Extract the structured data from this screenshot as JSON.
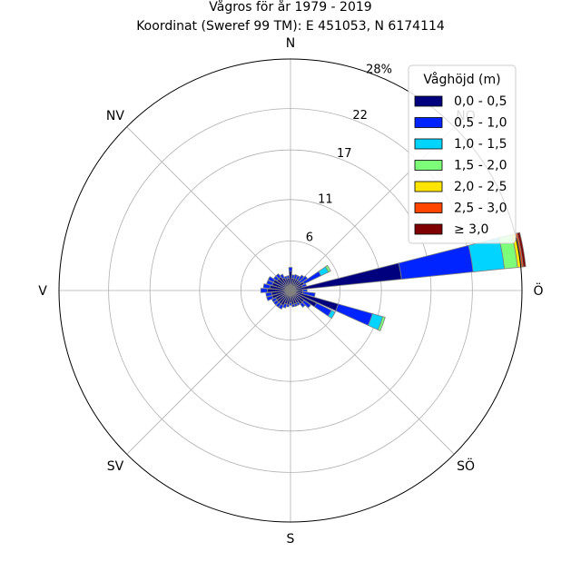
{
  "chart_data": {
    "type": "windrose",
    "title_line1": "Vågros för år 1979 - 2019",
    "title_line2": "Koordinat (Sweref 99 TM): E 451053, N 6174114",
    "radial_ticks": [
      "6",
      "11",
      "17",
      "22",
      "28%"
    ],
    "radial_tick_values": [
      6,
      11,
      17,
      22,
      28
    ],
    "r_max": 28,
    "direction_labels": [
      {
        "label": "N",
        "angle": 0
      },
      {
        "label": "NO",
        "angle": 45
      },
      {
        "label": "Ö",
        "angle": 90
      },
      {
        "label": "SÖ",
        "angle": 135
      },
      {
        "label": "S",
        "angle": 180
      },
      {
        "label": "SV",
        "angle": 225
      },
      {
        "label": "V",
        "angle": 270
      },
      {
        "label": "NV",
        "angle": 315
      }
    ],
    "legend_title": "Våghöjd (m)",
    "bins": [
      {
        "label": "0,0 - 0,5",
        "color": "#00007f"
      },
      {
        "label": "0,5 - 1,0",
        "color": "#0024ff"
      },
      {
        "label": "1,0 - 1,5",
        "color": "#00d4ff"
      },
      {
        "label": "1,5 - 2,0",
        "color": "#7dff7a"
      },
      {
        "label": "2,0 - 2,5",
        "color": "#ffe500"
      },
      {
        "label": "2,5 - 3,0",
        "color": "#ff4500"
      },
      {
        "label": "≥ 3,0",
        "color": "#7f0000"
      }
    ],
    "sector_directions": [
      0,
      10,
      20,
      30,
      40,
      50,
      60,
      70,
      80,
      90,
      100,
      110,
      120,
      130,
      140,
      150,
      160,
      170,
      180,
      190,
      200,
      210,
      220,
      230,
      240,
      250,
      260,
      270,
      280,
      290,
      300,
      310,
      320,
      330,
      340,
      350
    ],
    "sector_values": [
      [
        2.3,
        0.5,
        0,
        0,
        0,
        0,
        0
      ],
      [
        1.5,
        0.4,
        0,
        0,
        0,
        0,
        0
      ],
      [
        1.5,
        0.5,
        0,
        0,
        0,
        0,
        0
      ],
      [
        1.5,
        0.5,
        0,
        0,
        0,
        0,
        0
      ],
      [
        1.5,
        0.8,
        0,
        0,
        0,
        0,
        0
      ],
      [
        1.5,
        1.0,
        0,
        0,
        0,
        0,
        0
      ],
      [
        1.8,
        2.3,
        1.0,
        0.3,
        0,
        0,
        0
      ],
      [
        1.5,
        0.5,
        0,
        0,
        0,
        0,
        0
      ],
      [
        13.5,
        8.7,
        3.8,
        1.6,
        0.5,
        0.2,
        0.3
      ],
      [
        1.5,
        0.5,
        0,
        0,
        0,
        0,
        0
      ],
      [
        1.5,
        1.5,
        0,
        0,
        0,
        0,
        0
      ],
      [
        6.0,
        4.3,
        1.3,
        0.3,
        0,
        0,
        0
      ],
      [
        3.5,
        2.0,
        0.5,
        0,
        0,
        0,
        0
      ],
      [
        2.0,
        1.0,
        0,
        0,
        0,
        0,
        0
      ],
      [
        2.0,
        0.5,
        0,
        0,
        0,
        0,
        0
      ],
      [
        1.7,
        0.3,
        0,
        0,
        0,
        0,
        0
      ],
      [
        1.7,
        0.3,
        0,
        0,
        0,
        0,
        0
      ],
      [
        1.7,
        0.3,
        0,
        0,
        0,
        0,
        0
      ],
      [
        1.5,
        0.3,
        0,
        0,
        0,
        0,
        0
      ],
      [
        1.7,
        0.3,
        0,
        0,
        0,
        0,
        0
      ],
      [
        1.7,
        0.5,
        0,
        0,
        0,
        0,
        0
      ],
      [
        2.0,
        0.5,
        0,
        0,
        0,
        0,
        0
      ],
      [
        2.0,
        0.5,
        0,
        0,
        0,
        0,
        0
      ],
      [
        2.0,
        0.5,
        0,
        0,
        0,
        0,
        0
      ],
      [
        2.0,
        0.5,
        0,
        0,
        0,
        0,
        0
      ],
      [
        2.3,
        0.7,
        0,
        0,
        0,
        0,
        0
      ],
      [
        2.3,
        0.7,
        0,
        0,
        0,
        0,
        0
      ],
      [
        2.8,
        0.8,
        0,
        0,
        0,
        0,
        0
      ],
      [
        2.5,
        0.8,
        0,
        0,
        0,
        0,
        0
      ],
      [
        2.3,
        0.7,
        0,
        0,
        0,
        0,
        0
      ],
      [
        2.3,
        0.7,
        0,
        0,
        0,
        0,
        0
      ],
      [
        2.0,
        0.5,
        0,
        0,
        0,
        0,
        0
      ],
      [
        2.0,
        0.5,
        0,
        0,
        0,
        0,
        0
      ],
      [
        1.7,
        0.5,
        0,
        0,
        0,
        0,
        0
      ],
      [
        1.5,
        0.3,
        0,
        0,
        0,
        0,
        0
      ],
      [
        1.5,
        0.3,
        0,
        0,
        0,
        0,
        0
      ]
    ],
    "grid": true,
    "legend_position": "upper-right"
  }
}
